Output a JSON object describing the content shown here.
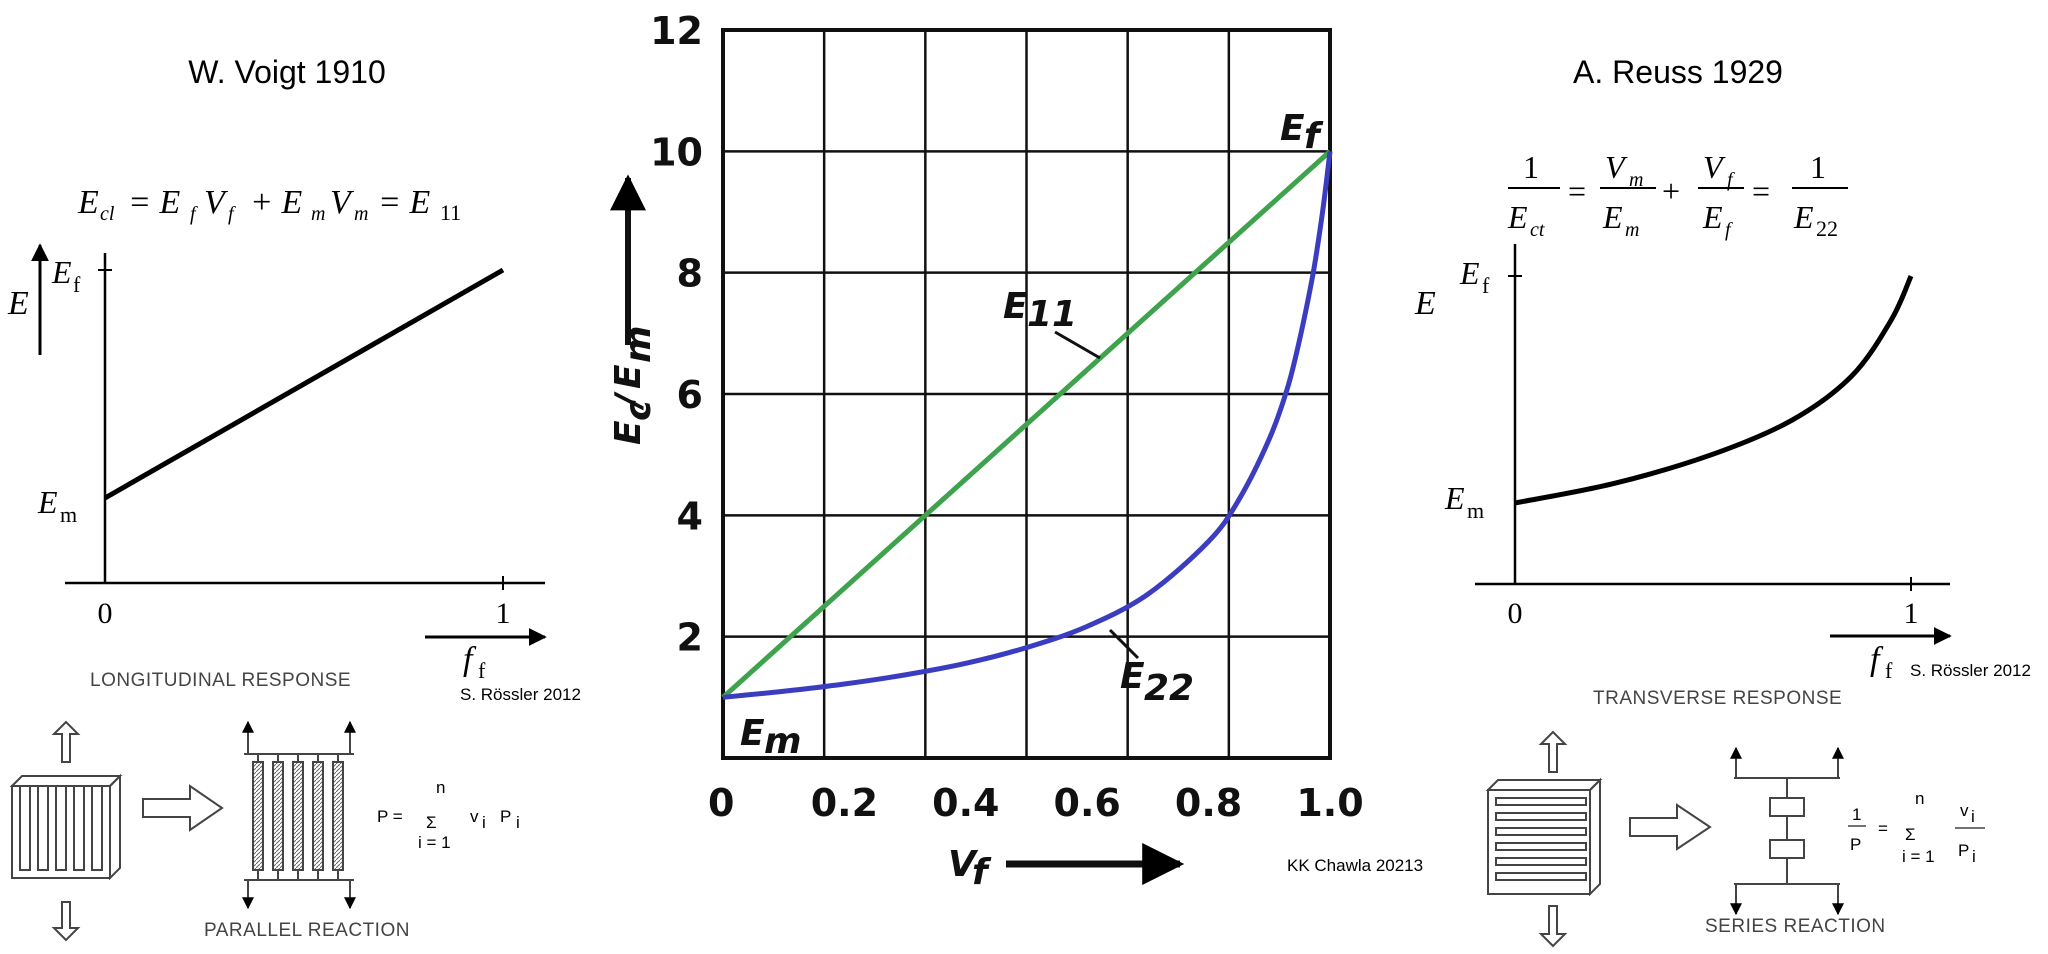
{
  "left_panel": {
    "title": "W. Voigt 1910",
    "credit": "S. Rössler 2012",
    "response_title": "LONGITUDINAL RESPONSE",
    "reaction_label": "PARALLEL REACTION",
    "y_axis": "E",
    "y_top_label": "E",
    "y_top_sub": "f",
    "y_bottom_label": "E",
    "y_bottom_sub": "m",
    "x_axis": "f",
    "x_axis_sub": "f",
    "x_tick0": "0",
    "x_tick1": "1",
    "eq_lhs": "E",
    "eq_lhs_sub": "cl",
    "eq_rest": "= E",
    "eq_t1_sub": "f",
    "eq_t1b": "V",
    "eq_t1b_sub": "f",
    "eq_plus": "+ E",
    "eq_t2_sub": "m",
    "eq_t2b": "V",
    "eq_t2b_sub": "m",
    "eq_end": "= E",
    "eq_end_sub": "11",
    "sum_P": "P =",
    "sum_n": "n",
    "sum_sigma": "Σ",
    "sum_i": "i = 1",
    "sum_v": "v",
    "sum_v_sub": "i",
    "sum_Pi": "P",
    "sum_Pi_sub": "i"
  },
  "right_panel": {
    "title": "A. Reuss 1929",
    "credit": "S. Rössler 2012",
    "response_title": "TRANSVERSE RESPONSE",
    "reaction_label": "SERIES REACTION",
    "y_axis": "E",
    "y_top_label": "E",
    "y_top_sub": "f",
    "y_bottom_label": "E",
    "y_bottom_sub": "m",
    "x_axis": "f",
    "x_axis_sub": "f",
    "x_tick0": "0",
    "x_tick1": "1",
    "eq_one": "1",
    "eq_ect": "E",
    "eq_ect_sub": "ct",
    "eq_vm": "V",
    "eq_vm_sub": "m",
    "eq_em": "E",
    "eq_em_sub": "m",
    "eq_vf": "V",
    "eq_vf_sub": "f",
    "eq_ef": "E",
    "eq_ef_sub": "f",
    "eq_e22": "E",
    "eq_e22_sub": "22",
    "eq_eq": "=",
    "eq_plus": "+",
    "sum_one": "1",
    "sum_P": "P",
    "sum_eq": "=",
    "sum_n": "n",
    "sum_sigma": "Σ",
    "sum_i": "i = 1",
    "sum_v": "v",
    "sum_v_sub": "i",
    "sum_Pi": "P",
    "sum_Pi_sub": "i"
  },
  "center_panel": {
    "credit": "KK Chawla 20213",
    "label_E11": "E",
    "label_E11_sub": "11",
    "label_E22": "E",
    "label_E22_sub": "22",
    "label_Ef": "E",
    "label_Ef_sub": "f",
    "label_Em": "E",
    "label_Em_sub": "m",
    "ylabel": "Ec / Em",
    "ylabel_a": "E",
    "ylabel_a_sub": "c",
    "ylabel_slash": "/",
    "ylabel_b": "E",
    "ylabel_b_sub": "m",
    "xlabel": "V",
    "xlabel_sub": "f"
  },
  "colors": {
    "green": "#3fa34d",
    "blue": "#3a3dbf",
    "black": "#000000"
  },
  "chart_data": [
    {
      "type": "line",
      "title": "",
      "xlabel": "Vf",
      "ylabel": "Ec / Em",
      "xlim": [
        0,
        1.0
      ],
      "ylim": [
        0,
        12
      ],
      "x_ticks": [
        "0",
        "0.2",
        "0.4",
        "0.6",
        "0.8",
        "1.0"
      ],
      "y_ticks": [
        "2",
        "4",
        "6",
        "8",
        "10",
        "12"
      ],
      "grid": true,
      "series": [
        {
          "name": "E11",
          "color": "#3fa34d",
          "x": [
            0,
            1.0
          ],
          "y": [
            1,
            10
          ]
        },
        {
          "name": "E22",
          "color": "#3a3dbf",
          "x": [
            0,
            0.1,
            0.2,
            0.3,
            0.4,
            0.5,
            0.6,
            0.7,
            0.8,
            0.85,
            0.9,
            0.93,
            0.95,
            0.97,
            0.98,
            0.99,
            1.0
          ],
          "y": [
            1,
            1.1,
            1.22,
            1.37,
            1.56,
            1.82,
            2.17,
            2.7,
            3.57,
            4.26,
            5.26,
            6.1,
            6.9,
            7.87,
            8.47,
            9.17,
            10
          ]
        }
      ]
    },
    {
      "type": "line",
      "title": "W. Voigt 1910",
      "xlabel": "f",
      "ylabel": "E",
      "x_ticks": [
        "0",
        "1"
      ],
      "series": [
        {
          "name": "",
          "x": [
            0,
            1
          ],
          "y": [
            0,
            1
          ]
        }
      ]
    },
    {
      "type": "line",
      "title": "A. Reuss 1929",
      "xlabel": "f",
      "ylabel": "E",
      "x_ticks": [
        "0",
        "1"
      ],
      "series": [
        {
          "name": "",
          "x": [
            0,
            0.25,
            0.5,
            0.7,
            0.85,
            0.95,
            1.0
          ],
          "y": [
            0,
            0.08,
            0.2,
            0.34,
            0.52,
            0.75,
            0.93
          ]
        }
      ]
    }
  ]
}
